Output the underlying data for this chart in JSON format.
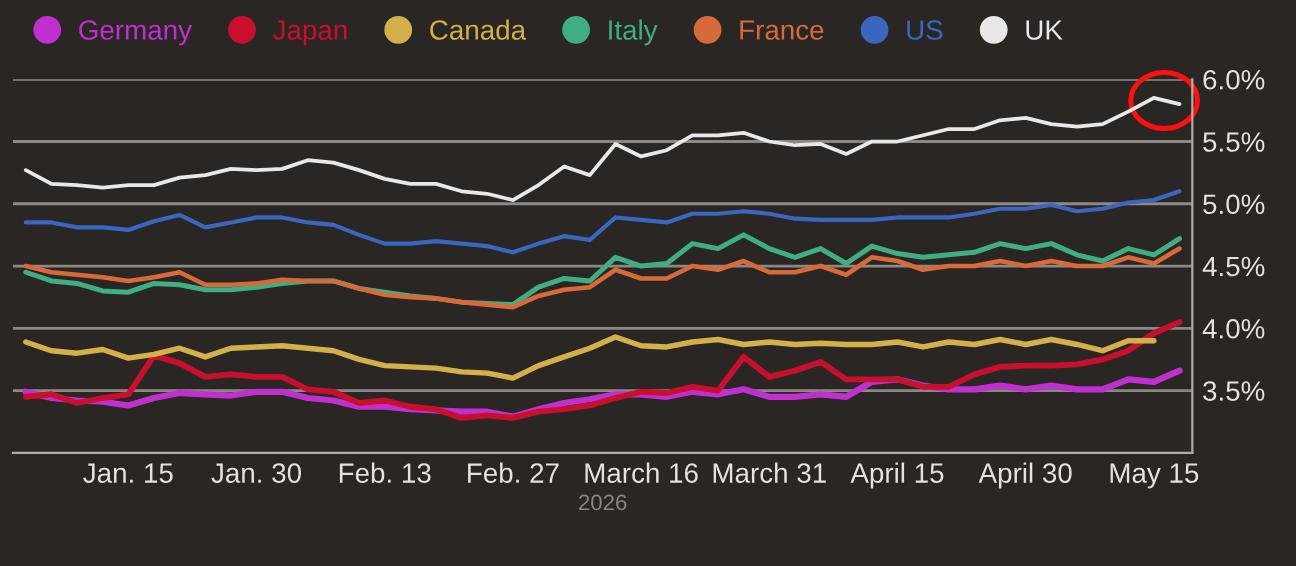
{
  "chart_data": {
    "type": "line",
    "categories": [
      null,
      null,
      null,
      null,
      "Jan. 15",
      null,
      null,
      null,
      null,
      "Jan. 30",
      null,
      null,
      null,
      null,
      "Feb. 13",
      null,
      null,
      null,
      null,
      "Feb. 27",
      null,
      null,
      null,
      null,
      "March 16",
      null,
      null,
      null,
      null,
      "March 31",
      null,
      null,
      null,
      null,
      "April 15",
      null,
      null,
      null,
      null,
      "April 30",
      null,
      null,
      null,
      null,
      "May 15",
      null
    ],
    "xlabel": "2026",
    "ylim": [
      3.0,
      6.0
    ],
    "yticks": [
      {
        "value": 3.5,
        "label": "3.5%"
      },
      {
        "value": 4.0,
        "label": "4.0%"
      },
      {
        "value": 4.5,
        "label": "4.5%"
      },
      {
        "value": 5.0,
        "label": "5.0%"
      },
      {
        "value": 5.5,
        "label": "5.5%"
      },
      {
        "value": 6.0,
        "label": "6.0%"
      }
    ],
    "grid": "y",
    "legend": "top left",
    "marker": "none",
    "line_style": "solid",
    "series": [
      {
        "name": "Germany",
        "color": "#c030d0",
        "values": [
          3.49,
          3.44,
          3.42,
          3.41,
          3.38,
          3.44,
          3.48,
          3.47,
          3.46,
          3.49,
          3.49,
          3.44,
          3.42,
          3.37,
          3.37,
          3.35,
          3.34,
          3.33,
          3.33,
          3.29,
          3.35,
          3.4,
          3.43,
          3.47,
          3.47,
          3.45,
          3.49,
          3.47,
          3.51,
          3.45,
          3.45,
          3.47,
          3.45,
          3.57,
          3.59,
          3.54,
          3.51,
          3.51,
          3.54,
          3.51,
          3.54,
          3.51,
          3.51,
          3.59,
          3.57,
          3.66
        ]
      },
      {
        "name": "Japan",
        "color": "#c8102e",
        "values": [
          3.45,
          3.47,
          3.4,
          3.44,
          3.47,
          3.78,
          3.72,
          3.61,
          3.63,
          3.61,
          3.61,
          3.51,
          3.49,
          3.4,
          3.42,
          3.37,
          3.35,
          3.28,
          3.3,
          3.28,
          3.33,
          3.35,
          3.38,
          3.44,
          3.49,
          3.48,
          3.53,
          3.5,
          3.77,
          3.61,
          3.66,
          3.73,
          3.59,
          3.59,
          3.59,
          3.53,
          3.53,
          3.63,
          3.69,
          3.7,
          3.7,
          3.71,
          3.75,
          3.82,
          3.96,
          4.05
        ]
      },
      {
        "name": "Canada",
        "color": "#d4b04a",
        "values": [
          3.89,
          3.82,
          3.8,
          3.83,
          3.76,
          3.79,
          3.84,
          3.77,
          3.84,
          3.85,
          3.86,
          3.84,
          3.82,
          3.75,
          3.7,
          3.69,
          3.68,
          3.65,
          3.64,
          3.6,
          3.7,
          3.77,
          3.84,
          3.93,
          3.86,
          3.85,
          3.89,
          3.91,
          3.87,
          3.89,
          3.87,
          3.88,
          3.87,
          3.87,
          3.89,
          3.85,
          3.89,
          3.87,
          3.91,
          3.87,
          3.91,
          3.87,
          3.82,
          3.9,
          3.9,
          null
        ]
      },
      {
        "name": "Italy",
        "color": "#3fae82",
        "values": [
          4.45,
          4.38,
          4.36,
          4.3,
          4.29,
          4.36,
          4.35,
          4.31,
          4.31,
          4.33,
          4.36,
          4.38,
          4.38,
          4.32,
          4.29,
          4.26,
          4.24,
          4.21,
          4.2,
          4.19,
          4.33,
          4.4,
          4.38,
          4.57,
          4.5,
          4.52,
          4.68,
          4.64,
          4.75,
          4.64,
          4.57,
          4.64,
          4.52,
          4.66,
          4.6,
          4.57,
          4.59,
          4.61,
          4.68,
          4.64,
          4.68,
          4.59,
          4.54,
          4.64,
          4.59,
          4.72
        ]
      },
      {
        "name": "France",
        "color": "#d86a3a",
        "values": [
          4.5,
          4.45,
          4.43,
          4.41,
          4.38,
          4.41,
          4.45,
          4.35,
          4.35,
          4.36,
          4.39,
          4.38,
          4.38,
          4.32,
          4.27,
          4.25,
          4.24,
          4.21,
          4.19,
          4.17,
          4.26,
          4.31,
          4.33,
          4.47,
          4.4,
          4.4,
          4.5,
          4.47,
          4.54,
          4.45,
          4.45,
          4.5,
          4.43,
          4.57,
          4.54,
          4.47,
          4.5,
          4.5,
          4.54,
          4.5,
          4.54,
          4.5,
          4.5,
          4.57,
          4.52,
          4.64
        ]
      },
      {
        "name": "US",
        "color": "#3b66c0",
        "values": [
          4.85,
          4.85,
          4.81,
          4.81,
          4.79,
          4.86,
          4.91,
          4.81,
          4.85,
          4.89,
          4.89,
          4.85,
          4.83,
          4.75,
          4.68,
          4.68,
          4.7,
          4.68,
          4.66,
          4.61,
          4.68,
          4.74,
          4.71,
          4.89,
          4.87,
          4.85,
          4.92,
          4.92,
          4.94,
          4.92,
          4.88,
          4.87,
          4.87,
          4.87,
          4.89,
          4.89,
          4.89,
          4.92,
          4.96,
          4.96,
          4.99,
          4.94,
          4.96,
          5.01,
          5.03,
          5.1
        ]
      },
      {
        "name": "UK",
        "color": "#e8e8e8",
        "values": [
          5.27,
          5.16,
          5.15,
          5.13,
          5.15,
          5.15,
          5.21,
          5.23,
          5.28,
          5.27,
          5.28,
          5.35,
          5.33,
          5.27,
          5.2,
          5.16,
          5.16,
          5.1,
          5.08,
          5.03,
          5.15,
          5.3,
          5.23,
          5.48,
          5.38,
          5.43,
          5.55,
          5.55,
          5.57,
          5.5,
          5.47,
          5.48,
          5.4,
          5.5,
          5.5,
          5.55,
          5.6,
          5.6,
          5.67,
          5.69,
          5.64,
          5.62,
          5.64,
          5.74,
          5.85,
          5.8
        ]
      }
    ]
  }
}
